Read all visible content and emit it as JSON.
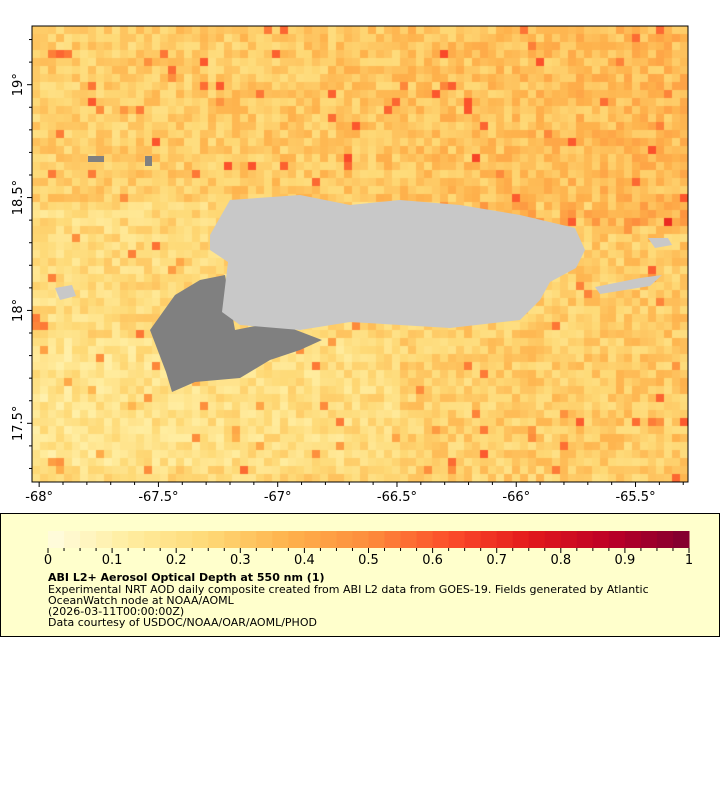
{
  "chart_data": {
    "type": "heatmap",
    "title": "ABI L2+ Aerosol Optical Depth at 550 nm (1)",
    "x_ticks": [
      "-68°",
      "-67.5°",
      "-67°",
      "-66.5°",
      "-66°",
      "-65.5°"
    ],
    "x_tick_values": [
      -68,
      -67.5,
      -67,
      -66.5,
      -66,
      -65.5
    ],
    "y_ticks": [
      "19°",
      "18.5°",
      "18°",
      "17.5°"
    ],
    "y_tick_values": [
      19,
      18.5,
      18,
      17.5
    ],
    "xlim": [
      -68.03,
      -65.28
    ],
    "ylim": [
      17.24,
      19.26
    ],
    "colorbar": {
      "range": [
        0,
        1
      ],
      "ticks": [
        "0",
        "0.1",
        "0.2",
        "0.3",
        "0.4",
        "0.5",
        "0.6",
        "0.7",
        "0.8",
        "0.9",
        "1"
      ],
      "colormap": [
        "#fffde0",
        "#ffeda0",
        "#fed976",
        "#feb24c",
        "#fd8d3c",
        "#fc4e2a",
        "#e31a1c",
        "#bd0026",
        "#7f0030"
      ]
    },
    "land_color": "#c8c8c8",
    "nodata_color": "#808080",
    "background": "#ffffcc"
  },
  "legend": {
    "title": "ABI L2+ Aerosol Optical Depth at 550 nm (1)",
    "line1": "Experimental NRT AOD daily composite created from ABI L2 data from GOES-19. Fields generated by Atlantic",
    "line2": "OceanWatch node at NOAA/AOML",
    "line3": "(2026-03-11T00:00:00Z)",
    "line4": "Data courtesy of USDOC/NOAA/OAR/AOML/PHOD"
  }
}
